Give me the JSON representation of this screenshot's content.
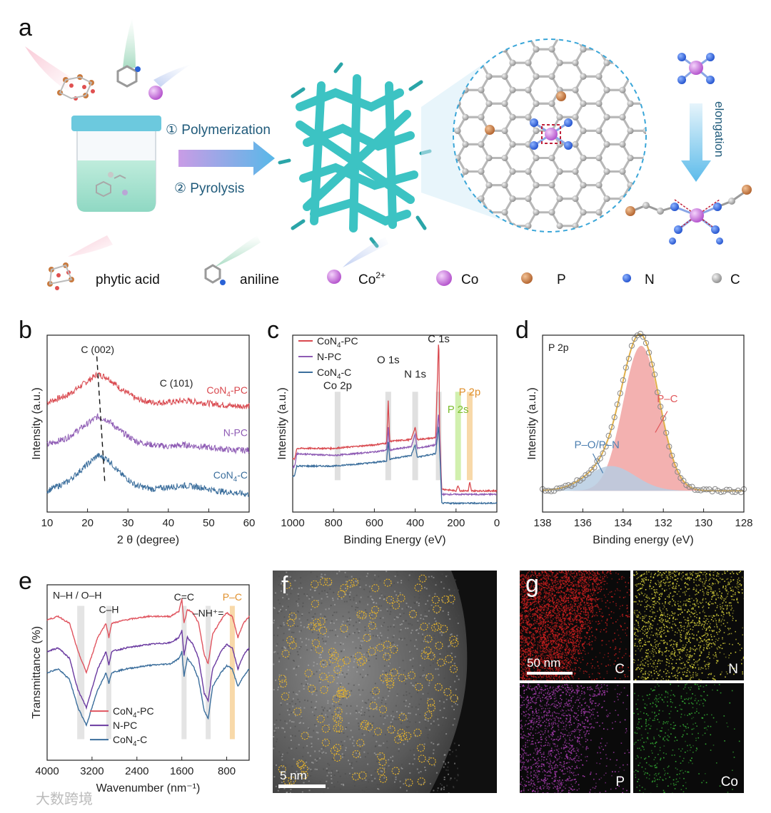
{
  "panels": {
    "a": "a",
    "b": "b",
    "c": "c",
    "d": "d",
    "e": "e",
    "f": "f",
    "g": "g"
  },
  "scheme": {
    "step1": "① Polymerization",
    "step2": "② Pyrolysis",
    "elongation": "elongation",
    "legend": [
      {
        "label": "phytic acid",
        "icon": "phytic-acid-icon"
      },
      {
        "label": "aniline",
        "icon": "aniline-icon"
      },
      {
        "label": "Co",
        "sup": "2+",
        "icon": "cobalt-ion-icon"
      },
      {
        "label": "Co",
        "icon": "cobalt-atom-icon",
        "color": "#d27ee0"
      },
      {
        "label": "P",
        "icon": "phosphorus-atom-icon",
        "color": "#c97a3e"
      },
      {
        "label": "N",
        "icon": "nitrogen-atom-icon",
        "color": "#2a62d6"
      },
      {
        "label": "C",
        "icon": "carbon-atom-icon",
        "color": "#9a9a9a"
      }
    ]
  },
  "chart_data": [
    {
      "panel": "b",
      "type": "line",
      "xlabel": "2 θ (degree)",
      "ylabel": "Intensity (a.u.)",
      "xlim": [
        10,
        60
      ],
      "xticks": [
        10,
        20,
        30,
        40,
        50,
        60
      ],
      "annotations": [
        "C (002)",
        "C (101)"
      ],
      "series": [
        {
          "name": "CoN",
          "sub": "4",
          "suffix": "-PC",
          "color": "#d9494f",
          "x": [
            10,
            15,
            20,
            22.5,
            25,
            28,
            32,
            36,
            40,
            44,
            48,
            52,
            56,
            60
          ],
          "y": [
            0.62,
            0.66,
            0.74,
            0.78,
            0.76,
            0.7,
            0.64,
            0.62,
            0.62,
            0.63,
            0.62,
            0.61,
            0.6,
            0.6
          ]
        },
        {
          "name": "N-PC",
          "color": "#8e5bb4",
          "x": [
            10,
            15,
            20,
            22.5,
            25,
            28,
            32,
            36,
            40,
            44,
            48,
            52,
            56,
            60
          ],
          "y": [
            0.38,
            0.42,
            0.5,
            0.54,
            0.52,
            0.46,
            0.4,
            0.38,
            0.37,
            0.38,
            0.37,
            0.36,
            0.35,
            0.35
          ]
        },
        {
          "name": "CoN",
          "sub": "4",
          "suffix": "-C",
          "color": "#3b6e9c",
          "x": [
            10,
            15,
            20,
            22.5,
            25,
            28,
            32,
            36,
            40,
            44,
            48,
            52,
            56,
            60
          ],
          "y": [
            0.12,
            0.17,
            0.27,
            0.32,
            0.3,
            0.22,
            0.15,
            0.13,
            0.14,
            0.15,
            0.14,
            0.12,
            0.11,
            0.1
          ]
        }
      ]
    },
    {
      "panel": "c",
      "type": "line",
      "xlabel": "Binding Energy (eV)",
      "ylabel": "Intensity (a.u.)",
      "xlim": [
        1000,
        0
      ],
      "xticks": [
        1000,
        800,
        600,
        400,
        200,
        0
      ],
      "peak_labels": [
        {
          "text": "Co 2p",
          "x": 780,
          "color": "#222222"
        },
        {
          "text": "O 1s",
          "x": 532,
          "color": "#222222"
        },
        {
          "text": "N 1s",
          "x": 400,
          "color": "#222222"
        },
        {
          "text": "C 1s",
          "x": 285,
          "color": "#222222"
        },
        {
          "text": "P 2s",
          "x": 190,
          "color": "#7cbd2e"
        },
        {
          "text": "P 2p",
          "x": 133,
          "color": "#e0902c"
        }
      ],
      "series": [
        {
          "name": "CoN",
          "sub": "4",
          "suffix": "-PC",
          "color": "#d9494f",
          "x": [
            1000,
            990,
            980,
            800,
            600,
            540,
            532,
            525,
            420,
            400,
            390,
            300,
            286,
            284,
            280,
            270,
            200,
            190,
            180,
            140,
            133,
            125,
            0
          ],
          "y": [
            0.3,
            0.3,
            0.36,
            0.36,
            0.38,
            0.39,
            0.63,
            0.4,
            0.41,
            0.48,
            0.41,
            0.42,
            0.95,
            0.92,
            0.46,
            0.13,
            0.12,
            0.15,
            0.12,
            0.12,
            0.17,
            0.12,
            0.12
          ]
        },
        {
          "name": "N-PC",
          "color": "#8e5bb4",
          "x": [
            1000,
            990,
            980,
            800,
            600,
            540,
            532,
            525,
            420,
            400,
            390,
            300,
            286,
            284,
            280,
            270,
            0
          ],
          "y": [
            0.25,
            0.26,
            0.33,
            0.32,
            0.34,
            0.35,
            0.48,
            0.35,
            0.37,
            0.44,
            0.36,
            0.38,
            0.55,
            0.52,
            0.4,
            0.1,
            0.1
          ]
        },
        {
          "name": "CoN",
          "sub": "4",
          "suffix": "-C",
          "color": "#3b6e9c",
          "x": [
            1000,
            990,
            980,
            800,
            600,
            540,
            532,
            525,
            420,
            400,
            390,
            300,
            286,
            284,
            280,
            270,
            0
          ],
          "y": [
            0.2,
            0.21,
            0.26,
            0.26,
            0.28,
            0.29,
            0.4,
            0.3,
            0.32,
            0.38,
            0.31,
            0.33,
            0.48,
            0.45,
            0.35,
            0.05,
            0.05
          ]
        }
      ]
    },
    {
      "panel": "d",
      "type": "area",
      "title": "P 2p",
      "xlabel": "Binding energy (eV)",
      "ylabel": "Intensity (a.u.)",
      "xlim": [
        138,
        128
      ],
      "xticks": [
        138,
        136,
        134,
        132,
        130,
        128
      ],
      "series": [
        {
          "name": "P–C",
          "color": "#f2a9a7",
          "center": 133.1,
          "width": 0.9,
          "height": 0.82
        },
        {
          "name": "P–O/P–N",
          "color": "#b7cde2",
          "center": 134.6,
          "width": 1.2,
          "height": 0.14
        }
      ]
    },
    {
      "panel": "e",
      "type": "line",
      "xlabel": "Wavenumber (nm⁻¹)",
      "ylabel": "Transmittance (%)",
      "xlim": [
        4000,
        400
      ],
      "xticks": [
        4000,
        3200,
        2400,
        1600,
        800
      ],
      "band_labels": [
        {
          "text": "N–H / O–H",
          "x": 3400,
          "color": "#222222"
        },
        {
          "text": "C–H",
          "x": 2900,
          "color": "#222222"
        },
        {
          "text": "C=C",
          "x": 1560,
          "color": "#222222"
        },
        {
          "text": "–NH⁺=",
          "x": 1130,
          "color": "#222222"
        },
        {
          "text": "P–C",
          "x": 700,
          "color": "#e0902c"
        }
      ],
      "series": [
        {
          "name": "CoN",
          "sub": "4",
          "suffix": "-PC",
          "color": "#e0545f",
          "x": [
            4000,
            3800,
            3600,
            3450,
            3300,
            3100,
            2950,
            2900,
            2850,
            2600,
            2200,
            1800,
            1650,
            1600,
            1560,
            1500,
            1400,
            1300,
            1200,
            1130,
            1050,
            900,
            800,
            700,
            600,
            500,
            400
          ],
          "y": [
            0.8,
            0.82,
            0.78,
            0.62,
            0.5,
            0.7,
            0.78,
            0.7,
            0.78,
            0.8,
            0.82,
            0.82,
            0.85,
            0.92,
            0.78,
            0.86,
            0.84,
            0.78,
            0.6,
            0.55,
            0.72,
            0.8,
            0.84,
            0.82,
            0.7,
            0.78,
            0.82
          ]
        },
        {
          "name": "N-PC",
          "color": "#6a3aa0",
          "x": [
            4000,
            3800,
            3600,
            3450,
            3300,
            3100,
            2950,
            2900,
            2850,
            2600,
            2200,
            1800,
            1650,
            1600,
            1560,
            1500,
            1400,
            1300,
            1200,
            1130,
            1050,
            900,
            800,
            700,
            600,
            500,
            400
          ],
          "y": [
            0.62,
            0.64,
            0.58,
            0.4,
            0.3,
            0.52,
            0.62,
            0.54,
            0.62,
            0.64,
            0.66,
            0.67,
            0.7,
            0.74,
            0.6,
            0.7,
            0.66,
            0.58,
            0.38,
            0.34,
            0.52,
            0.62,
            0.66,
            0.64,
            0.52,
            0.6,
            0.64
          ]
        },
        {
          "name": "CoN",
          "sub": "4",
          "suffix": "-C",
          "color": "#3b6e9c",
          "x": [
            4000,
            3800,
            3600,
            3450,
            3300,
            3100,
            2950,
            2900,
            2850,
            2600,
            2200,
            1800,
            1650,
            1600,
            1560,
            1500,
            1400,
            1300,
            1200,
            1130,
            1050,
            900,
            800,
            700,
            600,
            500,
            400
          ],
          "y": [
            0.5,
            0.52,
            0.46,
            0.3,
            0.2,
            0.4,
            0.5,
            0.44,
            0.5,
            0.52,
            0.54,
            0.55,
            0.58,
            0.62,
            0.48,
            0.58,
            0.54,
            0.46,
            0.28,
            0.24,
            0.42,
            0.5,
            0.54,
            0.52,
            0.42,
            0.48,
            0.52
          ]
        }
      ]
    }
  ],
  "micrographs": {
    "f_scalebar": "5 nm",
    "g_scalebar": "50 nm",
    "g_tiles": [
      {
        "label": "C",
        "color": "#c81e1e"
      },
      {
        "label": "N",
        "color": "#d8d23a"
      },
      {
        "label": "P",
        "color": "#a83cb0"
      },
      {
        "label": "Co",
        "color": "#35b035"
      }
    ]
  },
  "watermark": "大数跨境"
}
